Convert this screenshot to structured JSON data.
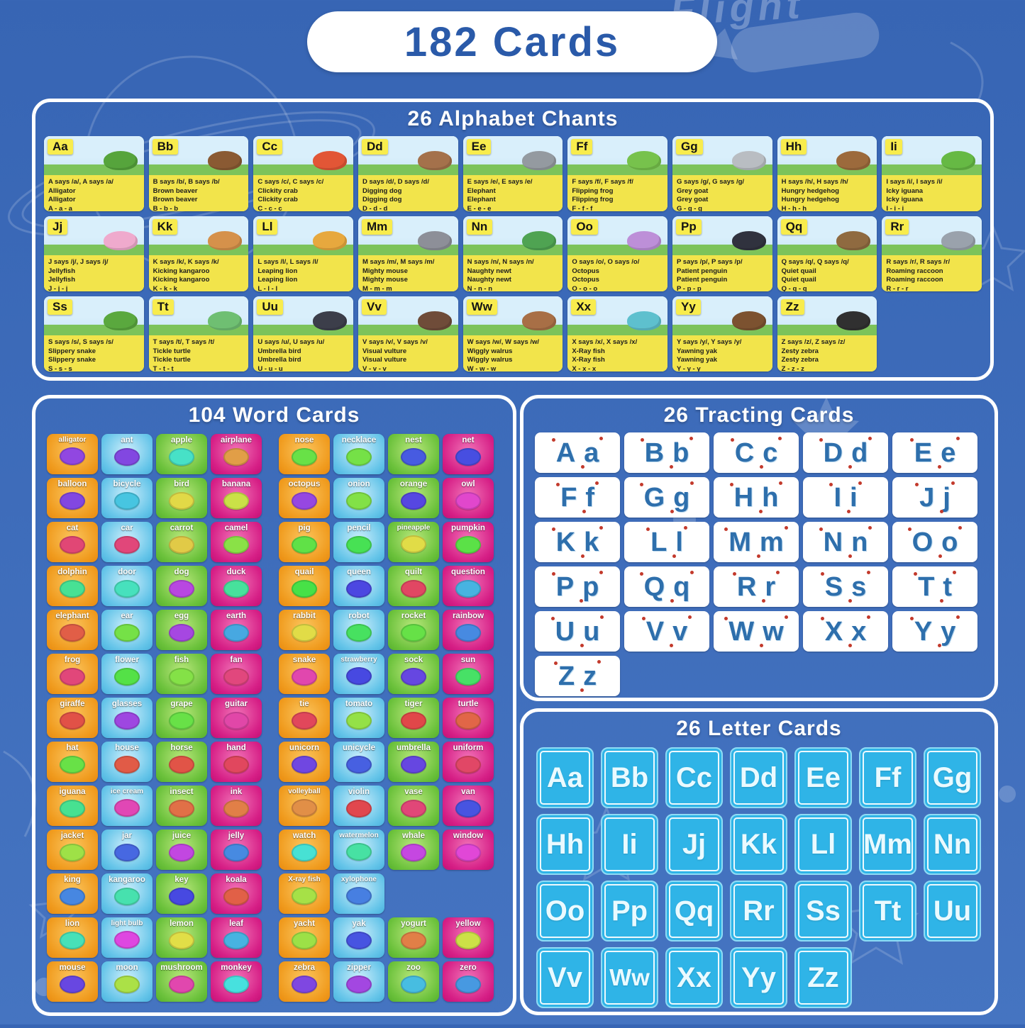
{
  "page_title": "182 Cards",
  "background_doodle_text": "Flight",
  "colors": {
    "background_top": "#3765b4",
    "background_bottom": "#4574c1",
    "panel_border": "#ffffff",
    "title_text_blue": "#2a5aa9",
    "chant_card_yellow": "#f2e44b",
    "chant_badge_yellow": "#f8ec4d",
    "tracing_letter_blue": "#2e6fac",
    "tracing_dot_red": "#c33a2c",
    "letter_card_cyan": "#2fb4e7",
    "word_card_orange": "#f09b1e",
    "word_card_blue": "#55bce4",
    "word_card_green": "#62bb33",
    "word_card_magenta": "#d61f86"
  },
  "sections": {
    "chants": {
      "title": "26 Alphabet Chants",
      "cards": [
        {
          "letter": "Aa",
          "lines": [
            "A says /a/, A says /a/",
            "Alligator",
            "Alligator",
            "A - a - a"
          ],
          "art_color": "#56a43c"
        },
        {
          "letter": "Bb",
          "lines": [
            "B says /b/, B says /b/",
            "Brown beaver",
            "Brown beaver",
            "B - b - b"
          ],
          "art_color": "#8a5a33"
        },
        {
          "letter": "Cc",
          "lines": [
            "C says /c/, C says /c/",
            "Clickity crab",
            "Clickity crab",
            "C - c - c"
          ],
          "art_color": "#e25636"
        },
        {
          "letter": "Dd",
          "lines": [
            "D says /d/, D says /d/",
            "Digging dog",
            "Digging dog",
            "D - d - d"
          ],
          "art_color": "#a4714b"
        },
        {
          "letter": "Ee",
          "lines": [
            "E says /e/, E says /e/",
            "Elephant",
            "Elephant",
            "E - e - e"
          ],
          "art_color": "#949aa0"
        },
        {
          "letter": "Ff",
          "lines": [
            "F says /f/, F says /f/",
            "Flipping frog",
            "Flipping frog",
            "F - f - f"
          ],
          "art_color": "#77c24c"
        },
        {
          "letter": "Gg",
          "lines": [
            "G says /g/, G says /g/",
            "Grey goat",
            "Grey goat",
            "G - g - g"
          ],
          "art_color": "#b9bdc2"
        },
        {
          "letter": "Hh",
          "lines": [
            "H says /h/, H says /h/",
            "Hungry hedgehog",
            "Hungry hedgehog",
            "H - h - h"
          ],
          "art_color": "#9c6a3c"
        },
        {
          "letter": "Ii",
          "lines": [
            "I says /i/, I says /i/",
            "Icky iguana",
            "Icky iguana",
            "I - i - i"
          ],
          "art_color": "#66b944"
        },
        {
          "letter": "Jj",
          "lines": [
            "J says /j/, J says /j/",
            "Jellyfish",
            "Jellyfish",
            "J - j - j"
          ],
          "art_color": "#efaacd"
        },
        {
          "letter": "Kk",
          "lines": [
            "K says /k/, K says /k/",
            "Kicking kangaroo",
            "Kicking kangaroo",
            "K - k - k"
          ],
          "art_color": "#d5914b"
        },
        {
          "letter": "Ll",
          "lines": [
            "L says /l/, L says /l/",
            "Leaping lion",
            "Leaping lion",
            "L - l - l"
          ],
          "art_color": "#e7a83e"
        },
        {
          "letter": "Mm",
          "lines": [
            "M says /m/, M says /m/",
            "Mighty mouse",
            "Mighty mouse",
            "M - m - m"
          ],
          "art_color": "#8d8f98"
        },
        {
          "letter": "Nn",
          "lines": [
            "N says /n/, N says /n/",
            "Naughty newt",
            "Naughty newt",
            "N - n - n"
          ],
          "art_color": "#4fa352"
        },
        {
          "letter": "Oo",
          "lines": [
            "O says /o/, O says /o/",
            "Octopus",
            "Octopus",
            "O - o - o"
          ],
          "art_color": "#bd8fd8"
        },
        {
          "letter": "Pp",
          "lines": [
            "P says /p/, P says /p/",
            "Patient penguin",
            "Patient penguin",
            "P - p - p"
          ],
          "art_color": "#30323e"
        },
        {
          "letter": "Qq",
          "lines": [
            "Q says /q/, Q says /q/",
            "Quiet quail",
            "Quiet quail",
            "Q - q - q"
          ],
          "art_color": "#8f6a40"
        },
        {
          "letter": "Rr",
          "lines": [
            "R says /r/, R says /r/",
            "Roaming raccoon",
            "Roaming raccoon",
            "R - r - r"
          ],
          "art_color": "#9aa2ac"
        },
        {
          "letter": "Ss",
          "lines": [
            "S says /s/, S says /s/",
            "Slippery snake",
            "Slippery snake",
            "S - s - s"
          ],
          "art_color": "#5aa83e"
        },
        {
          "letter": "Tt",
          "lines": [
            "T says /t/, T says /t/",
            "Tickle turtle",
            "Tickle turtle",
            "T - t - t"
          ],
          "art_color": "#6fbf72"
        },
        {
          "letter": "Uu",
          "lines": [
            "U says /u/, U says /u/",
            "Umbrella bird",
            "Umbrella bird",
            "U - u - u"
          ],
          "art_color": "#3c3e4a"
        },
        {
          "letter": "Vv",
          "lines": [
            "V says /v/, V says /v/",
            "Visual vulture",
            "Visual vulture",
            "V - v - v"
          ],
          "art_color": "#6f4c39"
        },
        {
          "letter": "Ww",
          "lines": [
            "W says /w/, W says /w/",
            "Wiggly walrus",
            "Wiggly walrus",
            "W - w - w"
          ],
          "art_color": "#a86f46"
        },
        {
          "letter": "Xx",
          "lines": [
            "X says /x/, X says /x/",
            "X-Ray fish",
            "X-Ray fish",
            "X - x - x"
          ],
          "art_color": "#5ec0ce"
        },
        {
          "letter": "Yy",
          "lines": [
            "Y says /y/, Y says /y/",
            "Yawning yak",
            "Yawning yak",
            "Y - y - y"
          ],
          "art_color": "#7c5230"
        },
        {
          "letter": "Zz",
          "lines": [
            "Z says /z/, Z says /z/",
            "Zesty zebra",
            "Zesty zebra",
            "Z - z - z"
          ],
          "art_color": "#303030"
        }
      ]
    },
    "words": {
      "title": "104 Word Cards",
      "left_rows": [
        [
          "alligator",
          "ant",
          "apple",
          "airplane"
        ],
        [
          "balloon",
          "bicycle",
          "bird",
          "banana"
        ],
        [
          "cat",
          "car",
          "carrot",
          "camel"
        ],
        [
          "dolphin",
          "door",
          "dog",
          "duck"
        ],
        [
          "elephant",
          "ear",
          "egg",
          "earth"
        ],
        [
          "frog",
          "flower",
          "fish",
          "fan"
        ],
        [
          "giraffe",
          "glasses",
          "grape",
          "guitar"
        ],
        [
          "hat",
          "house",
          "horse",
          "hand"
        ],
        [
          "iguana",
          "ice cream",
          "insect",
          "ink"
        ],
        [
          "jacket",
          "jar",
          "juice",
          "jelly"
        ],
        [
          "king",
          "kangaroo",
          "key",
          "koala"
        ],
        [
          "lion",
          "light bulb",
          "lemon",
          "leaf"
        ],
        [
          "mouse",
          "moon",
          "mushroom",
          "monkey"
        ]
      ],
      "right_rows": [
        [
          "nose",
          "necklace",
          "nest",
          "net"
        ],
        [
          "octopus",
          "onion",
          "orange",
          "owl"
        ],
        [
          "pig",
          "pencil",
          "pineapple",
          "pumpkin"
        ],
        [
          "quail",
          "queen",
          "quilt",
          "question"
        ],
        [
          "rabbit",
          "robot",
          "rocket",
          "rainbow"
        ],
        [
          "snake",
          "strawberry",
          "sock",
          "sun"
        ],
        [
          "tie",
          "tomato",
          "tiger",
          "turtle"
        ],
        [
          "unicorn",
          "unicycle",
          "umbrella",
          "uniform"
        ],
        [
          "volleyball",
          "violin",
          "vase",
          "van"
        ],
        [
          "watch",
          "watermelon",
          "whale",
          "window"
        ],
        [
          "X-ray fish",
          "xylophone",
          null,
          null
        ],
        [
          "yacht",
          "yak",
          "yogurt",
          "yellow"
        ],
        [
          "zebra",
          "zipper",
          "zoo",
          "zero"
        ]
      ]
    },
    "tracing": {
      "title": "26 Tracting Cards",
      "cards": [
        "Aa",
        "Bb",
        "Cc",
        "Dd",
        "Ee",
        "Ff",
        "Gg",
        "Hh",
        "Ii",
        "Jj",
        "Kk",
        "Ll",
        "Mm",
        "Nn",
        "Oo",
        "Pp",
        "Qq",
        "Rr",
        "Ss",
        "Tt",
        "Uu",
        "Vv",
        "Ww",
        "Xx",
        "Yy",
        "Zz"
      ]
    },
    "letters": {
      "title": "26 Letter Cards",
      "cards": [
        "Aa",
        "Bb",
        "Cc",
        "Dd",
        "Ee",
        "Ff",
        "Gg",
        "Hh",
        "Ii",
        "Jj",
        "Kk",
        "Ll",
        "Mm",
        "Nn",
        "Oo",
        "Pp",
        "Qq",
        "Rr",
        "Ss",
        "Tt",
        "Uu",
        "Vv",
        "Ww",
        "Xx",
        "Yy",
        "Zz"
      ]
    }
  }
}
